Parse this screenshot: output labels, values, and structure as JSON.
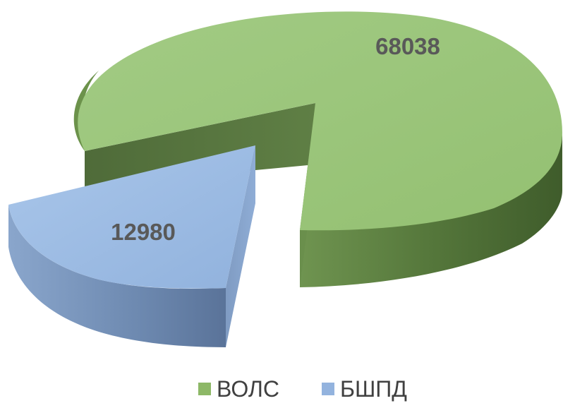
{
  "chart_data": {
    "type": "pie",
    "style": "3d-exploded",
    "title": "",
    "series": [
      {
        "categories": [
          "ВОЛС",
          "БШПД"
        ],
        "values": [
          68038,
          12980
        ],
        "colors": [
          "#8db867",
          "#93b3de"
        ]
      }
    ],
    "data_labels": [
      "68038",
      "12980"
    ],
    "legend": {
      "position": "bottom",
      "items": [
        "ВОЛС",
        "БШПД"
      ]
    }
  },
  "colors": {
    "volc_top": "#a4cb86",
    "volc_side": "#5a7d3f",
    "bshpd_top": "#9dbde6",
    "bshpd_side": "#6c8ab3"
  }
}
